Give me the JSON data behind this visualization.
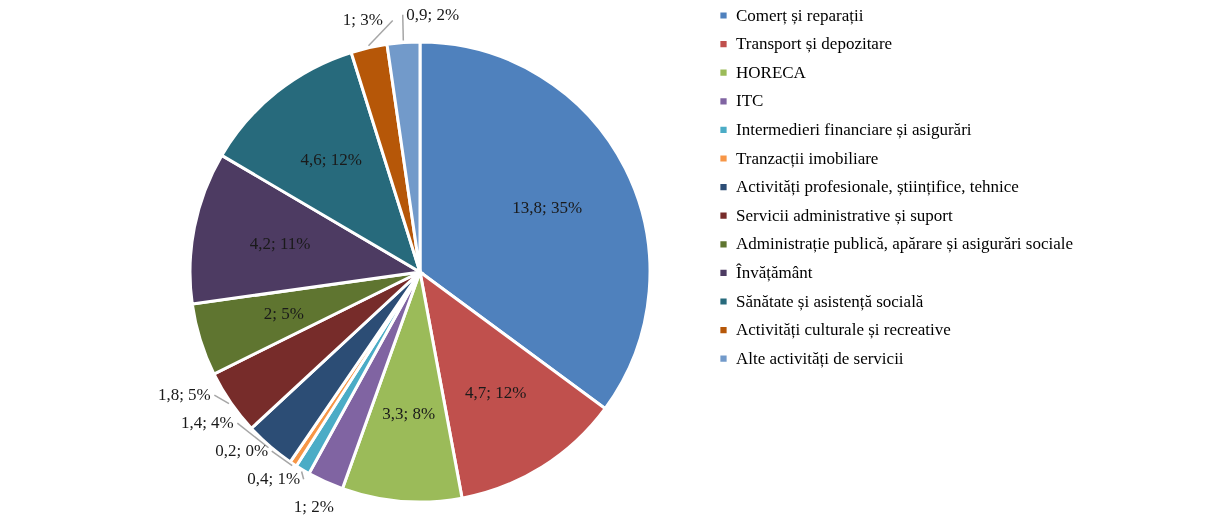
{
  "chart_data": {
    "type": "pie",
    "categories": [
      "Comerț și reparații",
      "Transport și depozitare",
      "HORECA",
      "ITC",
      "Intermedieri financiare și asigurări",
      "Tranzacții imobiliare",
      "Activități profesionale, științifice, tehnice",
      "Servicii administrative și suport",
      "Administrație publică, apărare și asigurări sociale",
      "Învățământ",
      "Sănătate și asistență socială",
      "Activități culturale și recreative",
      "Alte activități de servicii"
    ],
    "values": [
      13.8,
      4.7,
      3.3,
      1,
      0.4,
      0.2,
      1.4,
      1.8,
      2,
      4.2,
      4.6,
      1,
      0.9
    ],
    "value_labels": [
      "13,8; 35%",
      "4,7; 12%",
      "3,3; 8%",
      "1; 2%",
      "0,4; 1%",
      "0,2; 0%",
      "1,4; 4%",
      "1,8; 5%",
      "2; 5%",
      "4,2; 11%",
      "4,6; 12%",
      "1; 3%",
      "0,9; 2%"
    ],
    "colors": [
      "#4f81bd",
      "#c0504d",
      "#9bbb59",
      "#8064a2",
      "#4bacc6",
      "#f79646",
      "#2c4d75",
      "#772c2a",
      "#5f7530",
      "#4d3b62",
      "#276a7c",
      "#b65708",
      "#729aca"
    ],
    "legend": "right"
  }
}
